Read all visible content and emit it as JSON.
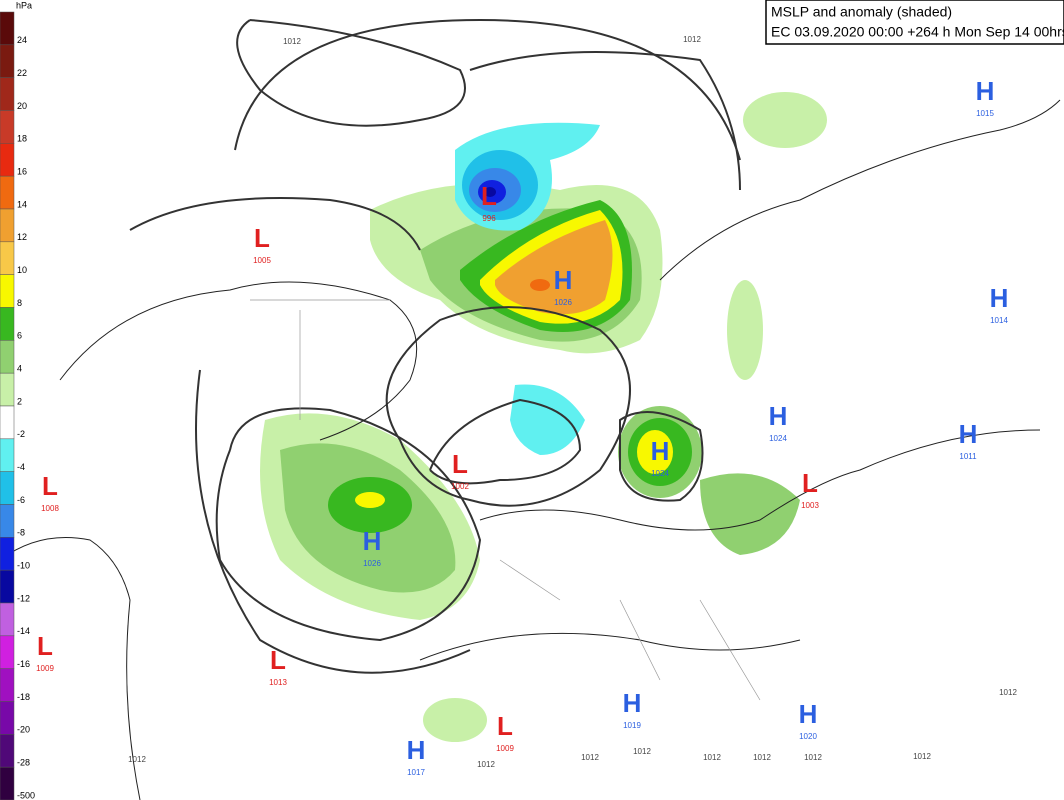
{
  "header": {
    "title": "MSLP and anomaly (shaded)",
    "subtitle": "EC 03.09.2020 00:00 +264 h Mon Sep 14 00hrs"
  },
  "colorbar": {
    "unit": "hPa",
    "entries": [
      {
        "label": "24",
        "color": "#5a0a0a"
      },
      {
        "label": "22",
        "color": "#7a1a10"
      },
      {
        "label": "20",
        "color": "#a0281a"
      },
      {
        "label": "18",
        "color": "#c83a28"
      },
      {
        "label": "16",
        "color": "#e82a10"
      },
      {
        "label": "14",
        "color": "#f06a10"
      },
      {
        "label": "12",
        "color": "#f0a030"
      },
      {
        "label": "10",
        "color": "#f8c848"
      },
      {
        "label": "8",
        "color": "#f8f800"
      },
      {
        "label": "6",
        "color": "#38b820"
      },
      {
        "label": "4",
        "color": "#90d070"
      },
      {
        "label": "2",
        "color": "#c8f0a8"
      },
      {
        "label": "-2",
        "color": "#ffffff"
      },
      {
        "label": "-4",
        "color": "#60f0f0"
      },
      {
        "label": "-6",
        "color": "#20c0e8"
      },
      {
        "label": "-8",
        "color": "#3888e8"
      },
      {
        "label": "-10",
        "color": "#1020e0"
      },
      {
        "label": "-12",
        "color": "#0808a0"
      },
      {
        "label": "-14",
        "color": "#c060e0"
      },
      {
        "label": "-16",
        "color": "#d020e0"
      },
      {
        "label": "-18",
        "color": "#a010c0"
      },
      {
        "label": "-20",
        "color": "#7808a8"
      },
      {
        "label": "-28",
        "color": "#500878"
      },
      {
        "label": "-500",
        "color": "#300040"
      }
    ]
  },
  "systems": [
    {
      "letter": "L",
      "value": "1005"
    },
    {
      "letter": "L",
      "value": "996"
    },
    {
      "letter": "H",
      "value": "1026"
    },
    {
      "letter": "L",
      "value": "1002"
    },
    {
      "letter": "H",
      "value": "1026"
    },
    {
      "letter": "H",
      "value": "1024"
    },
    {
      "letter": "H",
      "value": "1024"
    },
    {
      "letter": "L",
      "value": "1003"
    },
    {
      "letter": "H",
      "value": "1011"
    },
    {
      "letter": "H",
      "value": "1014"
    },
    {
      "letter": "H",
      "value": "1015"
    },
    {
      "letter": "L",
      "value": "1008"
    },
    {
      "letter": "L",
      "value": "1009"
    },
    {
      "letter": "L",
      "value": "1013"
    },
    {
      "letter": "L",
      "value": "1009"
    },
    {
      "letter": "H",
      "value": "1019"
    },
    {
      "letter": "H",
      "value": "1020"
    },
    {
      "letter": "H",
      "value": "1017"
    }
  ],
  "isobar_labels": [
    "1012",
    "1012",
    "1012",
    "1012",
    "1012",
    "1012",
    "1012",
    "1012",
    "1012",
    "1012",
    "1012"
  ]
}
